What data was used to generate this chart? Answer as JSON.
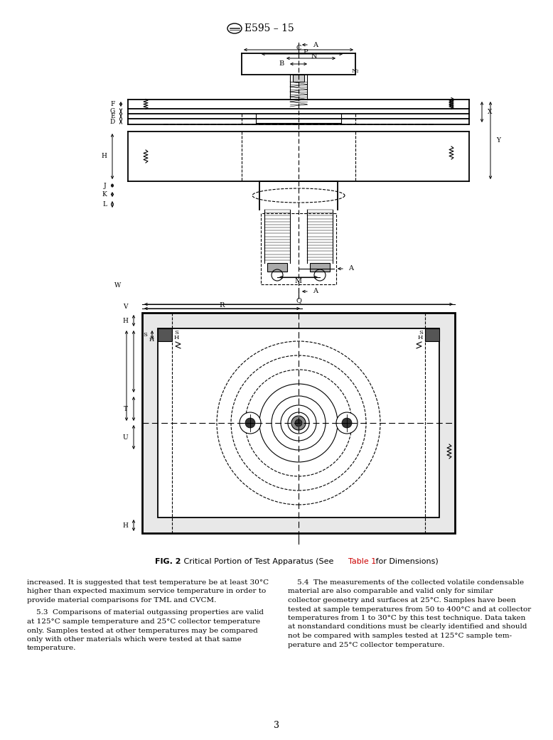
{
  "page_width": 7.78,
  "page_height": 10.41,
  "dpi": 100,
  "bg_color": "#ffffff",
  "header_title": "E595 – 15",
  "fig_caption_bold": "FIG. 2",
  "fig_caption_normal": "   Critical Portion of Test Apparatus (See ",
  "fig_caption_link": "Table 1",
  "fig_caption_end": " for Dimensions)",
  "page_number": "3",
  "line_color": "#000000",
  "text_color": "#000000",
  "link_color": "#cc0000",
  "intro_lines": [
    "increased. It is suggested that test temperature be at least 30°C",
    "higher than expected maximum service temperature in order to",
    "provide material comparisons for TML and CVCM."
  ],
  "para53_lines": [
    "    5.3  Comparisons of material outgassing properties are valid",
    "at 125°C sample temperature and 25°C collector temperature",
    "only. Samples tested at other temperatures may be compared",
    "only with other materials which were tested at that same",
    "temperature."
  ],
  "para54_lines": [
    "    5.4  The measurements of the collected volatile condensable",
    "material are also comparable and valid only for similar",
    "collector geometry and surfaces at 25°C. Samples have been",
    "tested at sample temperatures from 50 to 400°C and at collector",
    "temperatures from 1 to 30°C by this test technique. Data taken",
    "at nonstandard conditions must be clearly identified and should",
    "not be compared with samples tested at 125°C sample tem-",
    "perature and 25°C collector temperature."
  ]
}
